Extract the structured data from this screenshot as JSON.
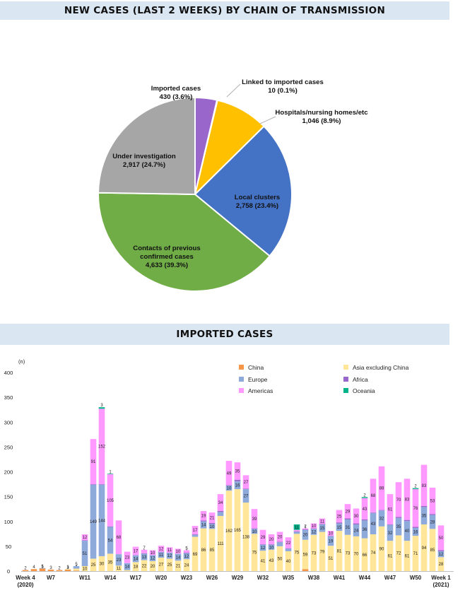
{
  "panel1": {
    "title": "NEW CASES (LAST 2 WEEKS) BY CHAIN OF TRANSMISSION"
  },
  "panel2": {
    "title": "IMPORTED CASES"
  },
  "chart_data": [
    {
      "type": "pie",
      "title": "NEW CASES (LAST 2 WEEKS) BY CHAIN OF TRANSMISSION",
      "slices": [
        {
          "label": "Imported cases",
          "display": "430  (3.6%)",
          "value": 430,
          "percent": 3.6,
          "color": "#9966cc"
        },
        {
          "label": "Linked to imported cases",
          "display": "10  (0.1%)",
          "value": 10,
          "percent": 0.1,
          "color": "#b0b0b0"
        },
        {
          "label": "Hospitals/nursing homes/etc",
          "display": "1,046  (8.9%)",
          "value": 1046,
          "percent": 8.9,
          "color": "#ffc000"
        },
        {
          "label": "Local clusters",
          "display": "2,758  (23.4%)",
          "value": 2758,
          "percent": 23.4,
          "color": "#4472c4"
        },
        {
          "label": "Contacts of previous confirmed cases",
          "display": "4,633  (39.3%)",
          "value": 4633,
          "percent": 39.3,
          "color": "#70ad47"
        },
        {
          "label": "Under investigation",
          "display": "2,917  (24.7%)",
          "value": 2917,
          "percent": 24.7,
          "color": "#a6a6a6"
        }
      ]
    },
    {
      "type": "bar",
      "stacked": true,
      "title": "IMPORTED CASES",
      "ylabel": "(n)",
      "ylim": [
        0,
        400
      ],
      "yticks": [
        0,
        50,
        100,
        150,
        200,
        250,
        300,
        350,
        400
      ],
      "xlabels": [
        {
          "week": 4,
          "lines": [
            "Week 4",
            "(2020)"
          ]
        },
        {
          "week": 7,
          "lines": [
            "W7"
          ]
        },
        {
          "week": 11,
          "lines": [
            "W11"
          ]
        },
        {
          "week": 14,
          "lines": [
            "W14"
          ]
        },
        {
          "week": 17,
          "lines": [
            "W17"
          ]
        },
        {
          "week": 20,
          "lines": [
            "W20"
          ]
        },
        {
          "week": 23,
          "lines": [
            "W23"
          ]
        },
        {
          "week": 26,
          "lines": [
            "W26"
          ]
        },
        {
          "week": 29,
          "lines": [
            "W29"
          ]
        },
        {
          "week": 32,
          "lines": [
            "W32"
          ]
        },
        {
          "week": 35,
          "lines": [
            "W35"
          ]
        },
        {
          "week": 38,
          "lines": [
            "W38"
          ]
        },
        {
          "week": 41,
          "lines": [
            "W41"
          ]
        },
        {
          "week": 44,
          "lines": [
            "W44"
          ]
        },
        {
          "week": 47,
          "lines": [
            "W47"
          ]
        },
        {
          "week": 50,
          "lines": [
            "W50"
          ]
        },
        {
          "week": 53,
          "lines": [
            "Week 1",
            "(2021)"
          ]
        }
      ],
      "weeks": [
        4,
        5,
        6,
        7,
        8,
        9,
        10,
        11,
        12,
        13,
        14,
        15,
        16,
        17,
        18,
        19,
        20,
        21,
        22,
        23,
        24,
        25,
        26,
        27,
        28,
        29,
        30,
        31,
        32,
        33,
        34,
        35,
        36,
        37,
        38,
        39,
        40,
        41,
        42,
        43,
        44,
        45,
        46,
        47,
        48,
        49,
        50,
        51,
        52,
        53,
        54
      ],
      "series": [
        {
          "name": "China",
          "color": "#f79646",
          "values": [
            2,
            4,
            5,
            3,
            2,
            3,
            1,
            0,
            0,
            0,
            0,
            0,
            0,
            0,
            0,
            0,
            0,
            0,
            0,
            0,
            0,
            0,
            0,
            0,
            0,
            0,
            0,
            0,
            0,
            0,
            0,
            0,
            0,
            4,
            0,
            0,
            0,
            0,
            0,
            0,
            0,
            0,
            0,
            0,
            0,
            0,
            0,
            0,
            0,
            0,
            0
          ]
        },
        {
          "name": "Asia excluding China",
          "color": "#ffe699",
          "values": [
            0,
            0,
            0,
            0,
            0,
            1,
            4,
            10,
            25,
            30,
            35,
            11,
            2,
            18,
            22,
            20,
            27,
            25,
            21,
            24,
            69,
            86,
            85,
            111,
            162,
            165,
            138,
            75,
            41,
            43,
            50,
            40,
            75,
            59,
            73,
            79,
            51,
            81,
            73,
            70,
            66,
            74,
            90,
            61,
            72,
            61,
            71,
            94,
            85,
            28,
            0
          ]
        },
        {
          "name": "Europe",
          "color": "#8eaadb",
          "values": [
            0,
            0,
            1,
            0,
            0,
            0,
            5,
            51,
            149,
            144,
            54,
            23,
            14,
            14,
            13,
            12,
            11,
            12,
            14,
            12,
            4,
            14,
            10,
            8,
            10,
            16,
            27,
            10,
            12,
            10,
            8,
            5,
            4,
            20,
            12,
            15,
            19,
            15,
            31,
            24,
            36,
            43,
            32,
            32,
            35,
            40,
            16,
            35,
            28,
            12,
            0
          ]
        },
        {
          "name": "Africa",
          "color": "#9966cc",
          "values": [
            0,
            0,
            0,
            0,
            0,
            0,
            0,
            1,
            1,
            1,
            1,
            0,
            0,
            0,
            1,
            0,
            1,
            0,
            0,
            1,
            1,
            2,
            2,
            2,
            1,
            3,
            1,
            1,
            1,
            1,
            1,
            1,
            1,
            1,
            1,
            1,
            1,
            2,
            2,
            2,
            2,
            1,
            1,
            1,
            2,
            2,
            2,
            2,
            2,
            2,
            0
          ]
        },
        {
          "name": "Americas",
          "color": "#ff99ff",
          "values": [
            0,
            0,
            0,
            0,
            0,
            0,
            0,
            12,
            91,
            152,
            105,
            68,
            23,
            17,
            7,
            10,
            12,
            11,
            10,
            5,
            17,
            19,
            21,
            34,
            49,
            35,
            27,
            39,
            29,
            20,
            20,
            22,
            3,
            2,
            10,
            11,
            10,
            25,
            29,
            30,
            43,
            68,
            88,
            61,
            70,
            83,
            76,
            83,
            53,
            50,
            0
          ]
        },
        {
          "name": "Oceania",
          "color": "#00b388",
          "values": [
            0,
            0,
            0,
            0,
            0,
            0,
            0,
            0,
            0,
            3,
            1,
            0,
            0,
            0,
            0,
            0,
            0,
            0,
            0,
            0,
            0,
            0,
            0,
            0,
            0,
            0,
            0,
            0,
            0,
            0,
            0,
            0,
            11,
            0,
            0,
            0,
            0,
            0,
            0,
            0,
            2,
            0,
            0,
            0,
            0,
            0,
            2,
            0,
            0,
            0,
            0
          ]
        }
      ]
    }
  ]
}
